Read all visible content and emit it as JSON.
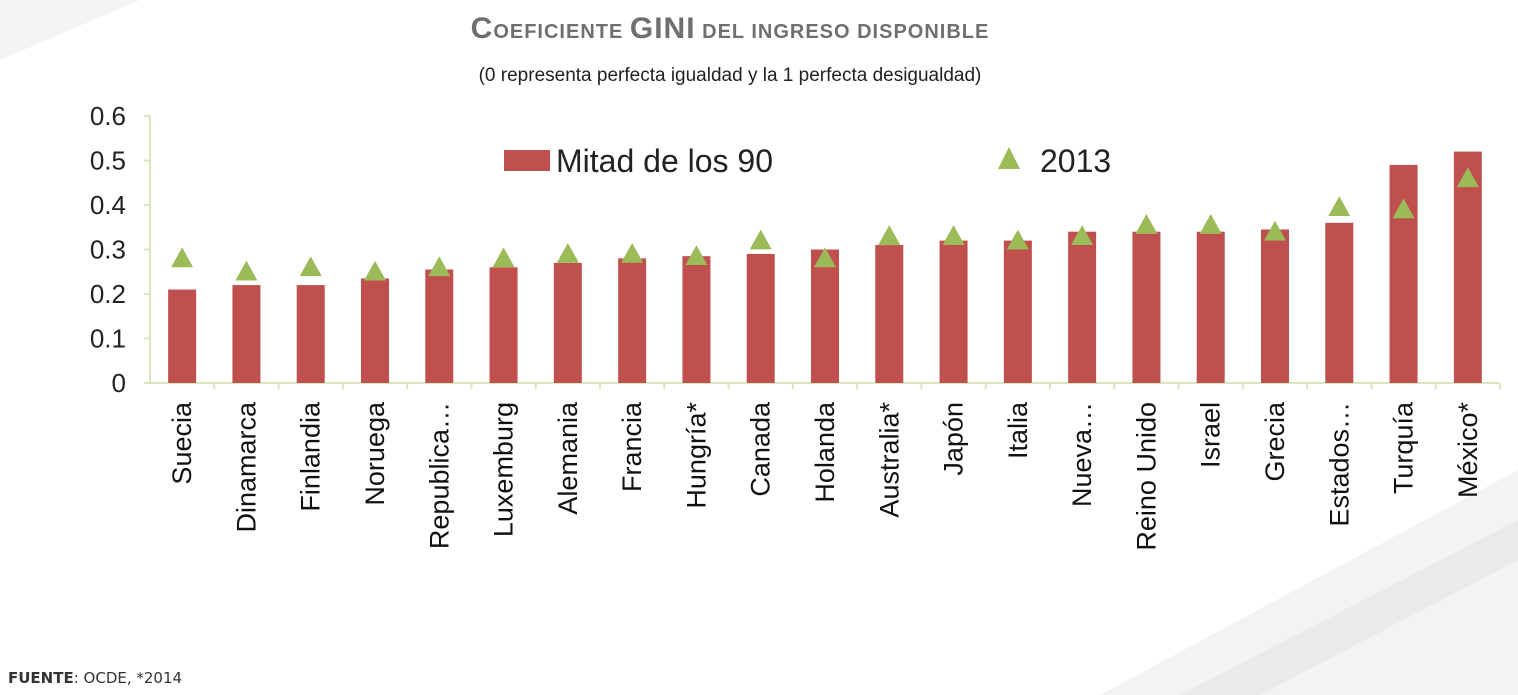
{
  "chart_data": {
    "type": "bar",
    "title": "Coeficiente GINI del ingreso disponible",
    "title_parts": [
      {
        "text": "C",
        "size": "big"
      },
      {
        "text": "OEFICIENTE  ",
        "size": "small"
      },
      {
        "text": "GINI",
        "size": "big"
      },
      {
        "text": " DEL INGRESO  DISPONIBLE",
        "size": "small"
      }
    ],
    "subtitle": "(0 representa perfecta igualdad y la 1 perfecta desigualdad)",
    "ylim": [
      0,
      0.6
    ],
    "yticks": [
      "0",
      "0.1",
      "0.2",
      "0.3",
      "0.4",
      "0.5",
      "0.6"
    ],
    "categories": [
      "Suecia",
      "Dinamarca",
      "Finlandia",
      "Noruega",
      "Republica…",
      "Luxemburg",
      "Alemania",
      "Francia",
      "Hungría*",
      "Canada",
      "Holanda",
      "Australia*",
      "Japón",
      "Italia",
      "Nueva…",
      "Reino Unido",
      "Israel",
      "Grecia",
      "Estados…",
      "Turquía",
      "México*"
    ],
    "series": [
      {
        "name": "Mitad de los 90",
        "kind": "bar",
        "color": "#c0504d",
        "values": [
          0.21,
          0.22,
          0.22,
          0.235,
          0.255,
          0.26,
          0.27,
          0.28,
          0.285,
          0.29,
          0.3,
          0.31,
          0.32,
          0.32,
          0.34,
          0.34,
          0.34,
          0.345,
          0.36,
          0.49,
          0.52
        ]
      },
      {
        "name": "2013",
        "kind": "marker",
        "marker": "triangle",
        "color": "#9bbb59",
        "values": [
          0.28,
          0.25,
          0.26,
          0.25,
          0.26,
          0.28,
          0.29,
          0.29,
          0.285,
          0.32,
          0.28,
          0.33,
          0.33,
          0.32,
          0.33,
          0.355,
          0.355,
          0.34,
          0.395,
          0.39,
          0.46
        ]
      }
    ],
    "legend_position": "top-center",
    "grid": false
  },
  "source": {
    "label": "FUENTE",
    "text": ": OCDE,  *2014"
  }
}
